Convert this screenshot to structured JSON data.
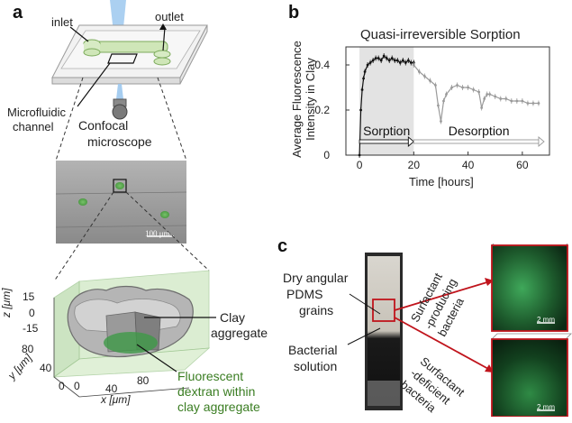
{
  "panel_a": {
    "label": "a",
    "inlet": "inlet",
    "outlet": "outlet",
    "channel": [
      "Microfluidic",
      "channel"
    ],
    "microscope": [
      "Confocal",
      "microscope"
    ],
    "scale_bar": "100 μm",
    "z_axis": "z [μm]",
    "y_axis": "y [μm]",
    "x_axis": "x [μm]",
    "z_ticks": [
      "15",
      "0",
      "-15"
    ],
    "y_ticks": [
      "80",
      "40",
      "0"
    ],
    "x_ticks": [
      "0",
      "40",
      "80"
    ],
    "clay": [
      "Clay",
      "aggregate"
    ],
    "dextran": [
      "Fluorescent",
      "dextran within",
      "clay aggregate"
    ]
  },
  "panel_b": {
    "label": "b",
    "chart_data": {
      "type": "line",
      "title": "Quasi-irreversible Sorption",
      "xlabel": "Time [hours]",
      "ylabel": "Average Fluorescence Intensity in Clay",
      "xlim": [
        -5,
        70
      ],
      "ylim": [
        0,
        0.48
      ],
      "xticks": [
        "0",
        "20",
        "40",
        "60"
      ],
      "yticks": [
        "0",
        "0.2",
        "0.4"
      ],
      "shaded_region": [
        0,
        20
      ],
      "phase_labels": [
        "Sorption",
        "Desorption"
      ],
      "series": [
        {
          "color": "#111111",
          "x": [
            0,
            0.5,
            1,
            1.5,
            2,
            3,
            4,
            5,
            6,
            7,
            8,
            9,
            10,
            11,
            12,
            13,
            14,
            15,
            16,
            17,
            18,
            19,
            20
          ],
          "y": [
            0.0,
            0.2,
            0.29,
            0.34,
            0.37,
            0.4,
            0.41,
            0.42,
            0.43,
            0.43,
            0.42,
            0.44,
            0.43,
            0.42,
            0.43,
            0.42,
            0.42,
            0.41,
            0.42,
            0.41,
            0.42,
            0.41,
            0.41
          ]
        },
        {
          "color": "#9a9a9a",
          "x": [
            20,
            22,
            24,
            26,
            28,
            29,
            30,
            31,
            32,
            34,
            36,
            38,
            40,
            42,
            44,
            45,
            46,
            47,
            48,
            50,
            52,
            54,
            56,
            58,
            60,
            62,
            64,
            66
          ],
          "y": [
            0.4,
            0.37,
            0.35,
            0.33,
            0.31,
            0.22,
            0.15,
            0.24,
            0.27,
            0.3,
            0.31,
            0.3,
            0.3,
            0.29,
            0.28,
            0.21,
            0.25,
            0.27,
            0.27,
            0.26,
            0.25,
            0.25,
            0.24,
            0.24,
            0.24,
            0.23,
            0.23,
            0.23
          ]
        }
      ]
    }
  },
  "panel_c": {
    "label": "c",
    "dry": [
      "Dry angular",
      "PDMS",
      "grains"
    ],
    "bacterial": [
      "Bacterial",
      "solution"
    ],
    "producing": [
      "Surfactant",
      "-producing",
      "bacteria"
    ],
    "deficient": [
      "Surfactant",
      "-deficient",
      "bacteria"
    ],
    "scale1": "2 mm",
    "scale2": "2 mm"
  },
  "colors": {
    "arrow_red": "#c0141c",
    "fluor_green": "#2f8a3a",
    "accent_blue": "#5aa9e6"
  }
}
